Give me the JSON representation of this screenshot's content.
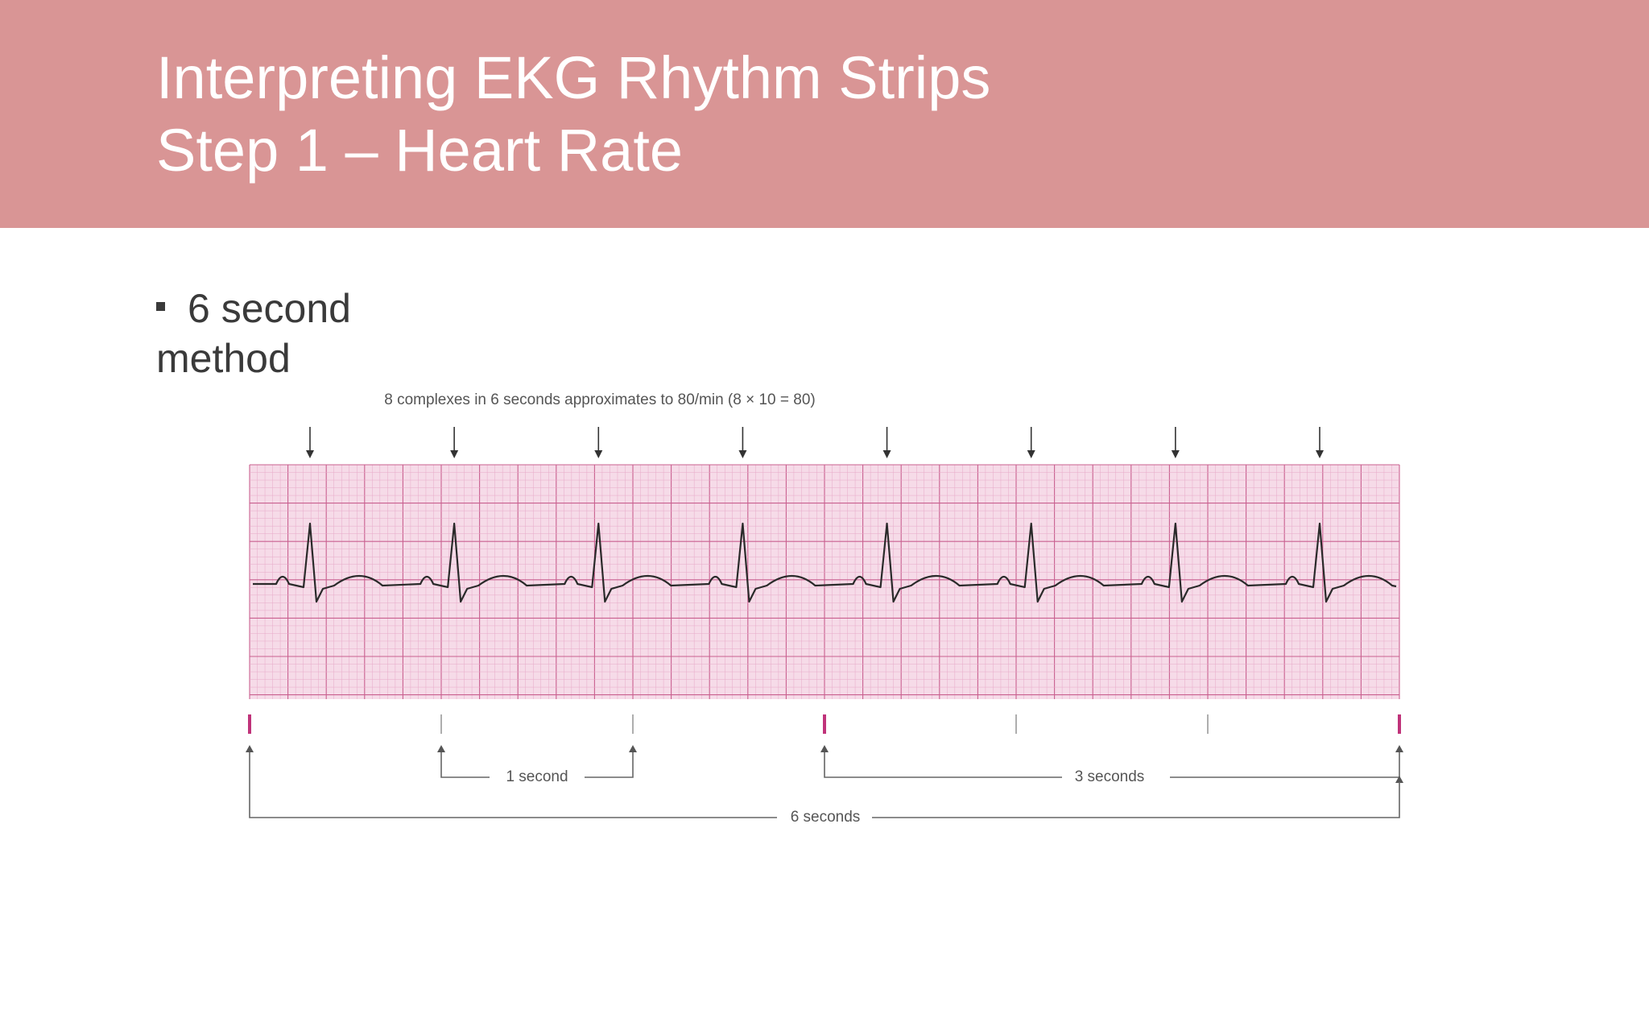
{
  "slide": {
    "title_line1": "Interpreting EKG Rhythm Strips",
    "title_line2": "Step 1 – Heart Rate",
    "bullet_line1": "6 second",
    "bullet_line2": "method"
  },
  "figure": {
    "caption": "8 complexes in 6 seconds approximates to 80/min (8 × 10 = 80)",
    "complex_count": 8,
    "strip_seconds": 6,
    "one_second_label": "1 second",
    "three_seconds_label": "3 seconds",
    "six_seconds_label": "6 seconds",
    "colors": {
      "header_band": "#d99595",
      "grid_background": "#f6dbe8",
      "grid_minor": "#e7a9c8",
      "grid_major": "#c9608f",
      "trace": "#2a2a2a",
      "second_marker": "#c0337a"
    }
  }
}
